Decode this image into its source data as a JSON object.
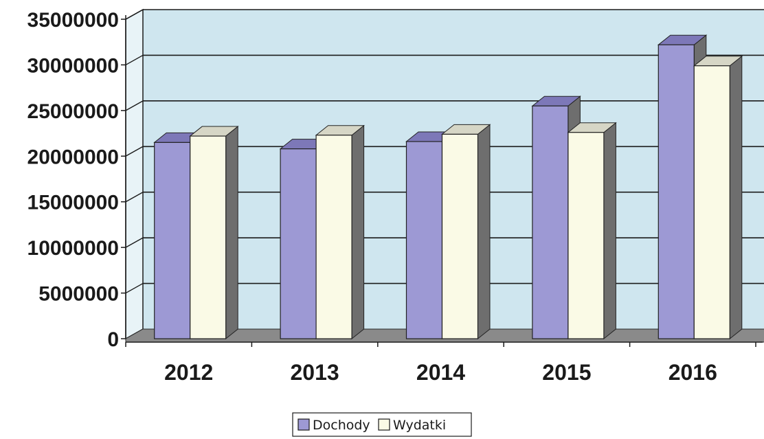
{
  "chart_data": {
    "type": "bar",
    "style": "3d-clustered-column",
    "categories": [
      "2012",
      "2013",
      "2014",
      "2015",
      "2016"
    ],
    "series": [
      {
        "name": "Dochody",
        "values": [
          21500000,
          20800000,
          21600000,
          25500000,
          32200000
        ],
        "color": "#9d99d4"
      },
      {
        "name": "Wydatki",
        "values": [
          22200000,
          22300000,
          22400000,
          22600000,
          29900000
        ],
        "color": "#fafae6"
      }
    ],
    "yticks": [
      "0",
      "5000000",
      "10000000",
      "15000000",
      "20000000",
      "25000000",
      "30000000",
      "35000000"
    ],
    "ylim": [
      0,
      35000000
    ],
    "grid": true,
    "legend_position": "bottom-center",
    "colors": {
      "wall": "#cfe6ef",
      "floor": "#8a8a8a",
      "bar_side": "#6e6e6e",
      "gridline": "#1a1a1a"
    }
  }
}
